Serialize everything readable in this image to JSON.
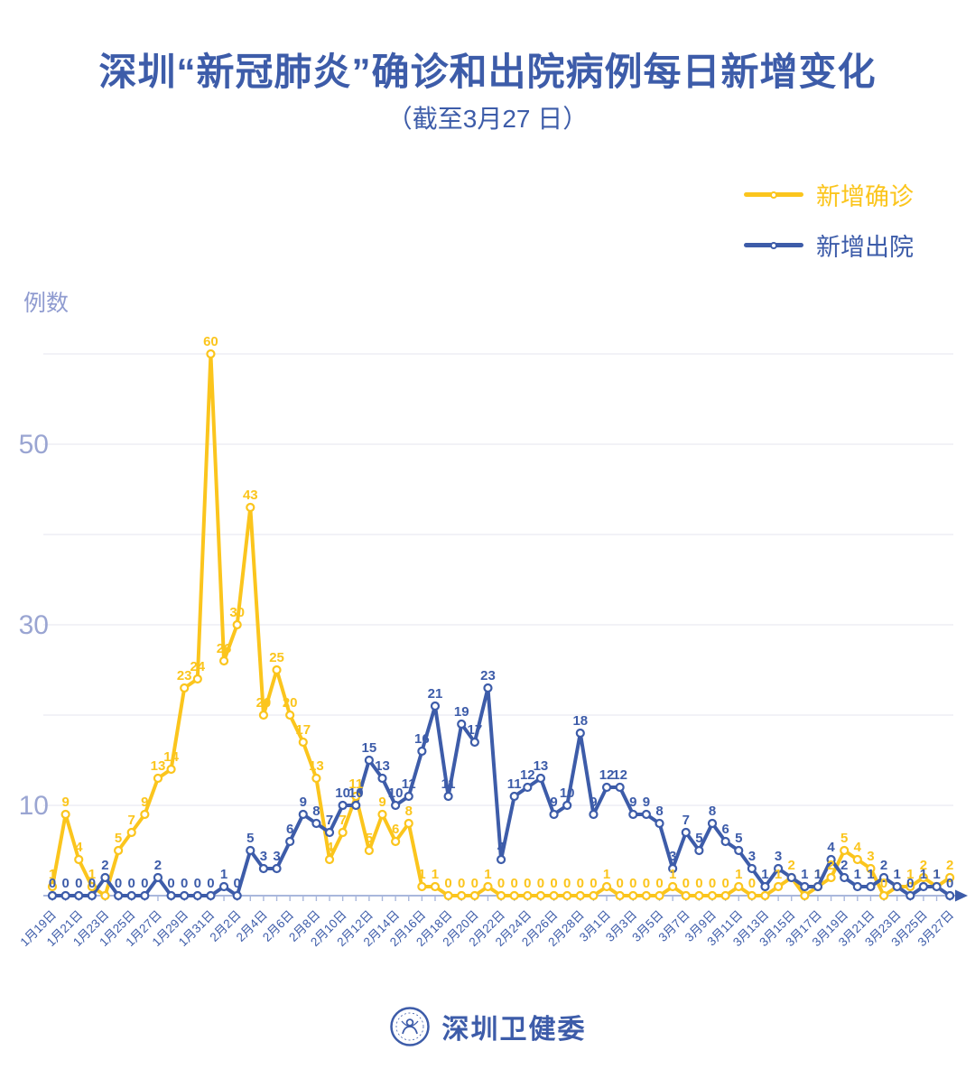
{
  "header": {
    "title": "深圳“新冠肺炎”确诊和出院病例每日新增变化",
    "subtitle": "（截至3月27 日）"
  },
  "legend": [
    {
      "label": "新增确诊",
      "color": "#FBC51D"
    },
    {
      "label": "新增出院",
      "color": "#3D5CA9"
    }
  ],
  "colors": {
    "primary_blue": "#3D5CA9",
    "confirmed_yellow": "#FBC51D",
    "axis_line": "#A9B7DC",
    "gridline": "#E9EBF2",
    "y_tick_label": "#9AA5D2"
  },
  "footer": {
    "logo_text": "深圳卫健委"
  },
  "chart_data": {
    "type": "line",
    "title": "深圳“新冠肺炎”确诊和出院病例每日新增变化",
    "subtitle": "（截至3月27 日）",
    "ylabel": "例数",
    "xlabel": "",
    "grid": true,
    "grid_step": 10,
    "ylim": [
      0,
      62
    ],
    "y_ticks": [
      10,
      30,
      50
    ],
    "x_tick_every": 2,
    "legend_position": "top-right",
    "categories": [
      "1月19日",
      "1月20日",
      "1月21日",
      "1月22日",
      "1月23日",
      "1月24日",
      "1月25日",
      "1月26日",
      "1月27日",
      "1月28日",
      "1月29日",
      "1月30日",
      "1月31日",
      "2月1日",
      "2月2日",
      "2月3日",
      "2月4日",
      "2月5日",
      "2月6日",
      "2月7日",
      "2月8日",
      "2月9日",
      "2月10日",
      "2月11日",
      "2月12日",
      "2月13日",
      "2月14日",
      "2月15日",
      "2月16日",
      "2月17日",
      "2月18日",
      "2月19日",
      "2月20日",
      "2月21日",
      "2月22日",
      "2月23日",
      "2月24日",
      "2月25日",
      "2月26日",
      "2月27日",
      "2月28日",
      "2月29日",
      "3月1日",
      "3月2日",
      "3月3日",
      "3月4日",
      "3月5日",
      "3月6日",
      "3月7日",
      "3月8日",
      "3月9日",
      "3月10日",
      "3月11日",
      "3月12日",
      "3月13日",
      "3月14日",
      "3月15日",
      "3月16日",
      "3月17日",
      "3月18日",
      "3月19日",
      "3月20日",
      "3月21日",
      "3月22日",
      "3月23日",
      "3月24日",
      "3月25日",
      "3月26日",
      "3月27日"
    ],
    "series": [
      {
        "name": "新增确诊",
        "color": "#FBC51D",
        "values": [
          1,
          9,
          4,
          1,
          0,
          5,
          7,
          9,
          13,
          14,
          23,
          24,
          60,
          26,
          30,
          43,
          20,
          25,
          20,
          17,
          13,
          4,
          7,
          11,
          5,
          9,
          6,
          8,
          1,
          1,
          0,
          0,
          0,
          1,
          0,
          0,
          0,
          0,
          0,
          0,
          0,
          0,
          1,
          0,
          0,
          0,
          0,
          1,
          0,
          0,
          0,
          0,
          1,
          0,
          0,
          1,
          2,
          0,
          1,
          2,
          5,
          4,
          3,
          0,
          1,
          1,
          2,
          1,
          2
        ]
      },
      {
        "name": "新增出院",
        "color": "#3D5CA9",
        "values": [
          0,
          0,
          0,
          0,
          2,
          0,
          0,
          0,
          2,
          0,
          0,
          0,
          0,
          1,
          0,
          5,
          3,
          3,
          6,
          9,
          8,
          7,
          10,
          10,
          15,
          13,
          10,
          11,
          16,
          21,
          11,
          19,
          17,
          23,
          4,
          11,
          12,
          13,
          9,
          10,
          18,
          9,
          12,
          12,
          9,
          9,
          8,
          3,
          7,
          5,
          8,
          6,
          5,
          3,
          1,
          3,
          2,
          1,
          1,
          4,
          2,
          1,
          1,
          2,
          1,
          0,
          1,
          1,
          0
        ]
      }
    ]
  }
}
